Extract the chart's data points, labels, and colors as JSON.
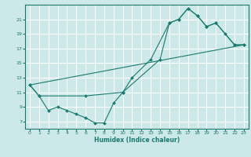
{
  "xlabel": "Humidex (Indice chaleur)",
  "background_color": "#cce8e8",
  "grid_color": "#ffffff",
  "line_color": "#1a7a6e",
  "xlim": [
    -0.5,
    23.5
  ],
  "ylim": [
    6,
    23
  ],
  "xticks": [
    0,
    1,
    2,
    3,
    4,
    5,
    6,
    7,
    8,
    9,
    10,
    11,
    12,
    13,
    14,
    15,
    16,
    17,
    18,
    19,
    20,
    21,
    22,
    23
  ],
  "yticks": [
    7,
    9,
    11,
    13,
    15,
    17,
    19,
    21
  ],
  "series1_x": [
    0,
    1,
    2,
    3,
    4,
    5,
    6,
    7,
    8,
    9,
    10,
    11,
    13,
    15,
    16,
    17,
    18,
    19,
    20,
    21,
    22,
    23
  ],
  "series1_y": [
    12.0,
    10.5,
    8.5,
    9.0,
    8.5,
    8.0,
    7.5,
    6.8,
    6.8,
    9.5,
    11.0,
    13.0,
    15.5,
    20.5,
    21.0,
    22.5,
    21.5,
    20.0,
    20.5,
    19.0,
    17.5,
    17.5
  ],
  "series2_x": [
    0,
    1,
    6,
    10,
    14,
    15,
    16,
    17,
    18,
    19,
    20,
    22,
    23
  ],
  "series2_y": [
    12.0,
    10.5,
    10.5,
    11.0,
    15.5,
    20.5,
    21.0,
    22.5,
    21.5,
    20.0,
    20.5,
    17.5,
    17.5
  ],
  "series3_x": [
    0,
    23
  ],
  "series3_y": [
    12.0,
    17.5
  ]
}
